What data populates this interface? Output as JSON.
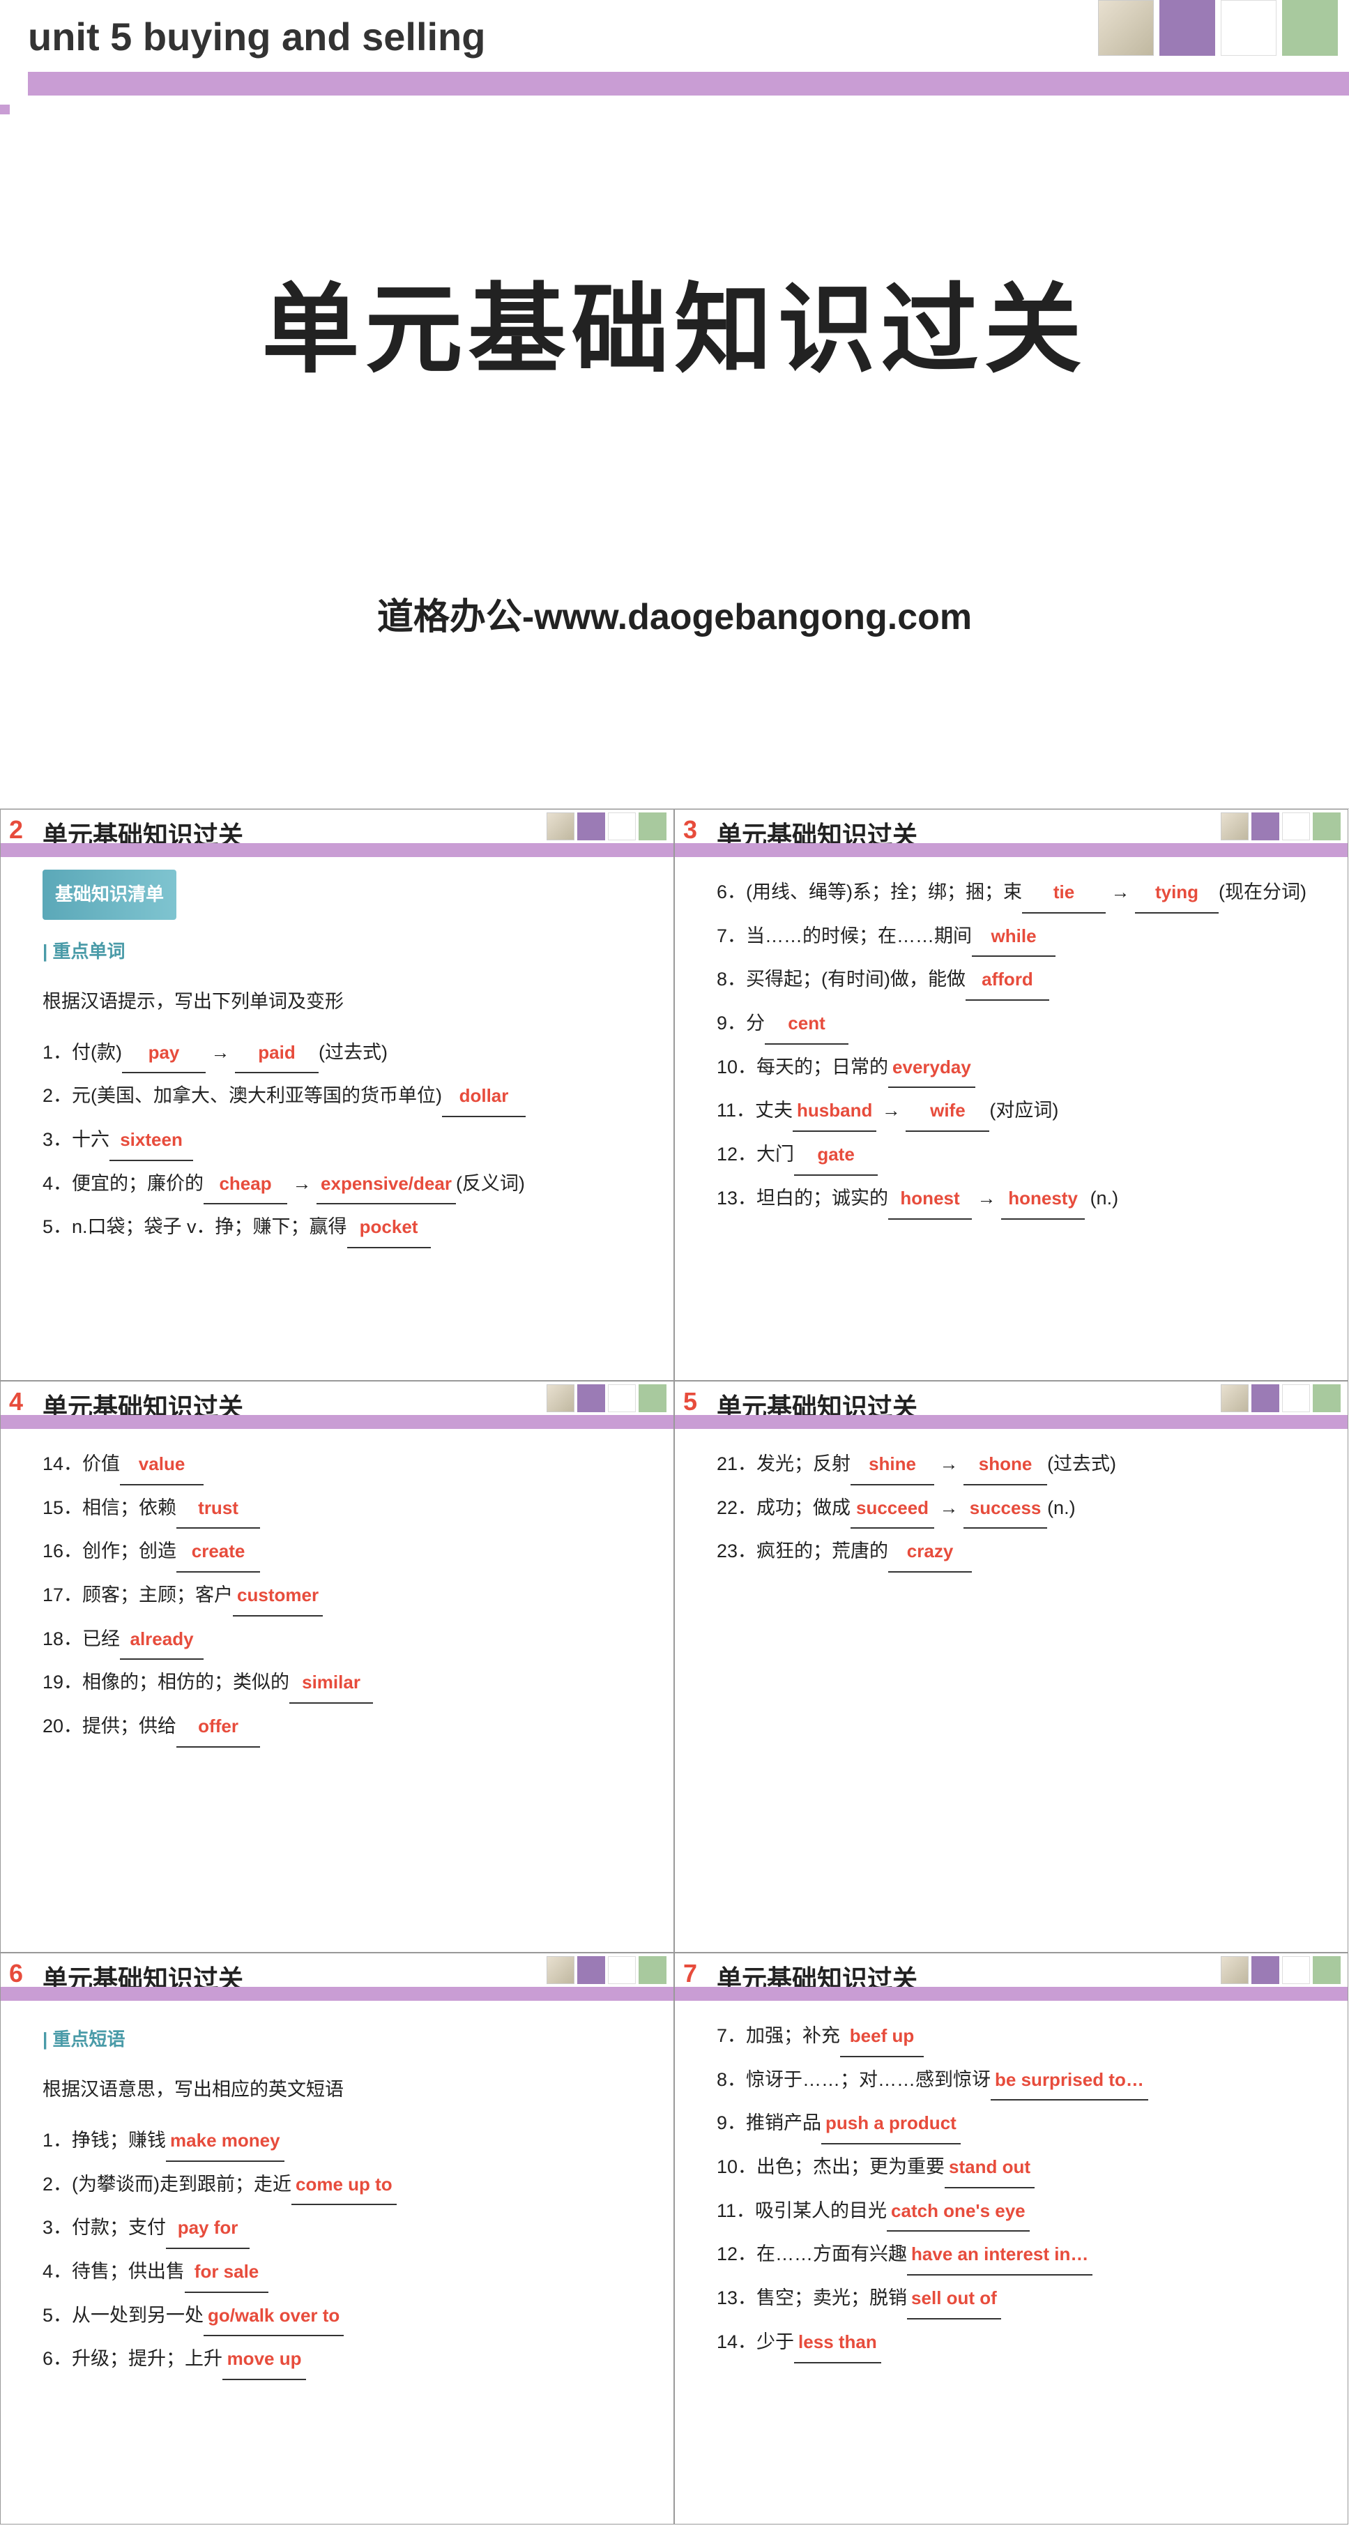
{
  "main": {
    "unit_label": "unit 5    buying and selling",
    "title": "单元基础知识过关",
    "subtitle": "道格办公-www.daogebangong.com"
  },
  "colors": {
    "header_bar": "#c99dd4",
    "answer": "#e74c3c",
    "section": "#5ba8b8",
    "sub": "#4a9ba8"
  },
  "slides": [
    {
      "num": "2",
      "title": "单元基础知识过关",
      "section": "基础知识清单",
      "sub": "重点单词",
      "instr": "根据汉语提示，写出下列单词及变形",
      "items": [
        {
          "t": "1．付(款)________ → ________(过去式)",
          "a": [
            "pay",
            "paid"
          ]
        },
        {
          "t": "2．元(美国、加拿大、澳大利亚等国的货币单位)________",
          "a": [
            "dollar"
          ]
        },
        {
          "t": "3．十六________",
          "a": [
            "sixteen"
          ]
        },
        {
          "t": "4．便宜的；廉价的________ → ________(反义词)",
          "a": [
            "cheap",
            "expensive/dear"
          ]
        },
        {
          "t": "5．n.口袋；袋子 v．挣；赚下；赢得________",
          "a": [
            "pocket"
          ]
        }
      ]
    },
    {
      "num": "3",
      "title": "单元基础知识过关",
      "items": [
        {
          "t": "6．(用线、绳等)系；拴；绑；捆；束________ → ________(现在分词)",
          "a": [
            "tie",
            "tying"
          ]
        },
        {
          "t": "7．当……的时候；在……期间________",
          "a": [
            "while"
          ]
        },
        {
          "t": "8．买得起；(有时间)做，能做________",
          "a": [
            "afford"
          ]
        },
        {
          "t": "9．分________",
          "a": [
            "cent"
          ]
        },
        {
          "t": "10．每天的；日常的________",
          "a": [
            "everyday"
          ]
        },
        {
          "t": "11．丈夫________ → ________(对应词)",
          "a": [
            "husband",
            "wife"
          ]
        },
        {
          "t": "12．大门________",
          "a": [
            "gate"
          ]
        },
        {
          "t": "13．坦白的；诚实的________ → ________ (n.)",
          "a": [
            "honest",
            "honesty"
          ]
        }
      ]
    },
    {
      "num": "4",
      "title": "单元基础知识过关",
      "items": [
        {
          "t": "14．价值________",
          "a": [
            "value"
          ]
        },
        {
          "t": "15．相信；依赖________",
          "a": [
            "trust"
          ]
        },
        {
          "t": "16．创作；创造________",
          "a": [
            "create"
          ]
        },
        {
          "t": "17．顾客；主顾；客户________",
          "a": [
            "customer"
          ]
        },
        {
          "t": "18．已经________",
          "a": [
            "already"
          ]
        },
        {
          "t": "19．相像的；相仿的；类似的________",
          "a": [
            "similar"
          ]
        },
        {
          "t": "20．提供；供给________",
          "a": [
            "offer"
          ]
        }
      ]
    },
    {
      "num": "5",
      "title": "单元基础知识过关",
      "items": [
        {
          "t": "21．发光；反射________ → ________(过去式)",
          "a": [
            "shine",
            "shone"
          ]
        },
        {
          "t": "22．成功；做成________ → ________(n.)",
          "a": [
            "succeed",
            "success"
          ]
        },
        {
          "t": "23．疯狂的；荒唐的________",
          "a": [
            "crazy"
          ]
        }
      ]
    },
    {
      "num": "6",
      "title": "单元基础知识过关",
      "sub": "重点短语",
      "instr": "根据汉语意思，写出相应的英文短语",
      "items": [
        {
          "t": "1．挣钱；赚钱________________",
          "a": [
            "make money"
          ]
        },
        {
          "t": "2．(为攀谈而)走到跟前；走近________________",
          "a": [
            "come up to"
          ]
        },
        {
          "t": "3．付款；支付________________",
          "a": [
            "pay for"
          ]
        },
        {
          "t": "4．待售；供出售________________",
          "a": [
            "for sale"
          ]
        },
        {
          "t": "5．从一处到另一处________________",
          "a": [
            "go/walk over to"
          ]
        },
        {
          "t": "6．升级；提升；上升________________",
          "a": [
            "move up"
          ]
        }
      ]
    },
    {
      "num": "7",
      "title": "单元基础知识过关",
      "items": [
        {
          "t": "7．加强；补充________________",
          "a": [
            "beef up"
          ]
        },
        {
          "t": "8．惊讶于……；对……感到惊讶________________",
          "a": [
            "be surprised to…"
          ]
        },
        {
          "t": "9．推销产品________________",
          "a": [
            "push a product"
          ]
        },
        {
          "t": "10．出色；杰出；更为重要________________",
          "a": [
            "stand out"
          ]
        },
        {
          "t": "11．吸引某人的目光________________",
          "a": [
            "catch one's eye"
          ]
        },
        {
          "t": "12．在……方面有兴趣________________",
          "a": [
            "have an interest in…"
          ]
        },
        {
          "t": "13．售空；卖光；脱销________________",
          "a": [
            "sell out of"
          ]
        },
        {
          "t": "14．少于________________",
          "a": [
            "less than"
          ]
        }
      ]
    }
  ]
}
